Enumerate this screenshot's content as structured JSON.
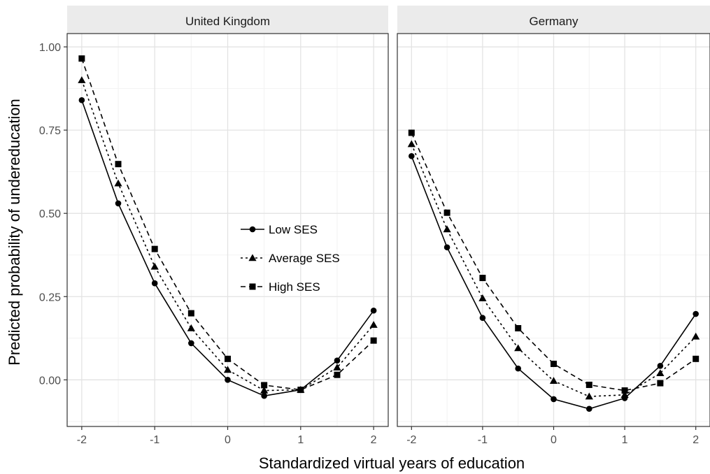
{
  "chart_data": {
    "type": "line",
    "xlabel": "Standardized virtual years of education",
    "ylabel": "Predicted probability of undereducation",
    "xlim": [
      -2.2,
      2.2
    ],
    "ylim": [
      -0.14,
      1.04
    ],
    "x_ticks": [
      -2,
      -1,
      0,
      1,
      2
    ],
    "x_tick_labels": [
      "-2",
      "-1",
      "0",
      "1",
      "2"
    ],
    "y_ticks": [
      0.0,
      0.25,
      0.5,
      0.75,
      1.0
    ],
    "y_tick_labels": [
      "0.00",
      "0.25",
      "0.50",
      "0.75",
      "1.00"
    ],
    "grid": true,
    "legend": {
      "position": "inside-top-left-panel-center",
      "entries": [
        {
          "label": "Low SES",
          "marker": "circle",
          "dash": "solid"
        },
        {
          "label": "Average SES",
          "marker": "triangle",
          "dash": "dotted"
        },
        {
          "label": "High SES",
          "marker": "square",
          "dash": "dashed"
        }
      ]
    },
    "x": [
      -2,
      -1.5,
      -1,
      -0.5,
      0,
      0.5,
      1,
      1.5,
      2
    ],
    "panels": [
      {
        "title": "United Kingdom",
        "series": [
          {
            "name": "Low SES",
            "values": [
              0.84,
              0.53,
              0.29,
              0.11,
              0.0,
              -0.048,
              -0.03,
              0.058,
              0.208
            ]
          },
          {
            "name": "Average SES",
            "values": [
              0.9,
              0.59,
              0.34,
              0.155,
              0.03,
              -0.032,
              -0.03,
              0.037,
              0.165
            ]
          },
          {
            "name": "High SES",
            "values": [
              0.965,
              0.648,
              0.393,
              0.2,
              0.063,
              -0.016,
              -0.03,
              0.015,
              0.118
            ]
          }
        ]
      },
      {
        "title": "Germany",
        "series": [
          {
            "name": "Low SES",
            "values": [
              0.672,
              0.398,
              0.186,
              0.034,
              -0.058,
              -0.087,
              -0.055,
              0.042,
              0.198
            ]
          },
          {
            "name": "Average SES",
            "values": [
              0.708,
              0.452,
              0.245,
              0.095,
              -0.003,
              -0.05,
              -0.045,
              0.02,
              0.13
            ]
          },
          {
            "name": "High SES",
            "values": [
              0.742,
              0.502,
              0.306,
              0.155,
              0.048,
              -0.015,
              -0.032,
              -0.01,
              0.063
            ]
          }
        ]
      }
    ]
  }
}
